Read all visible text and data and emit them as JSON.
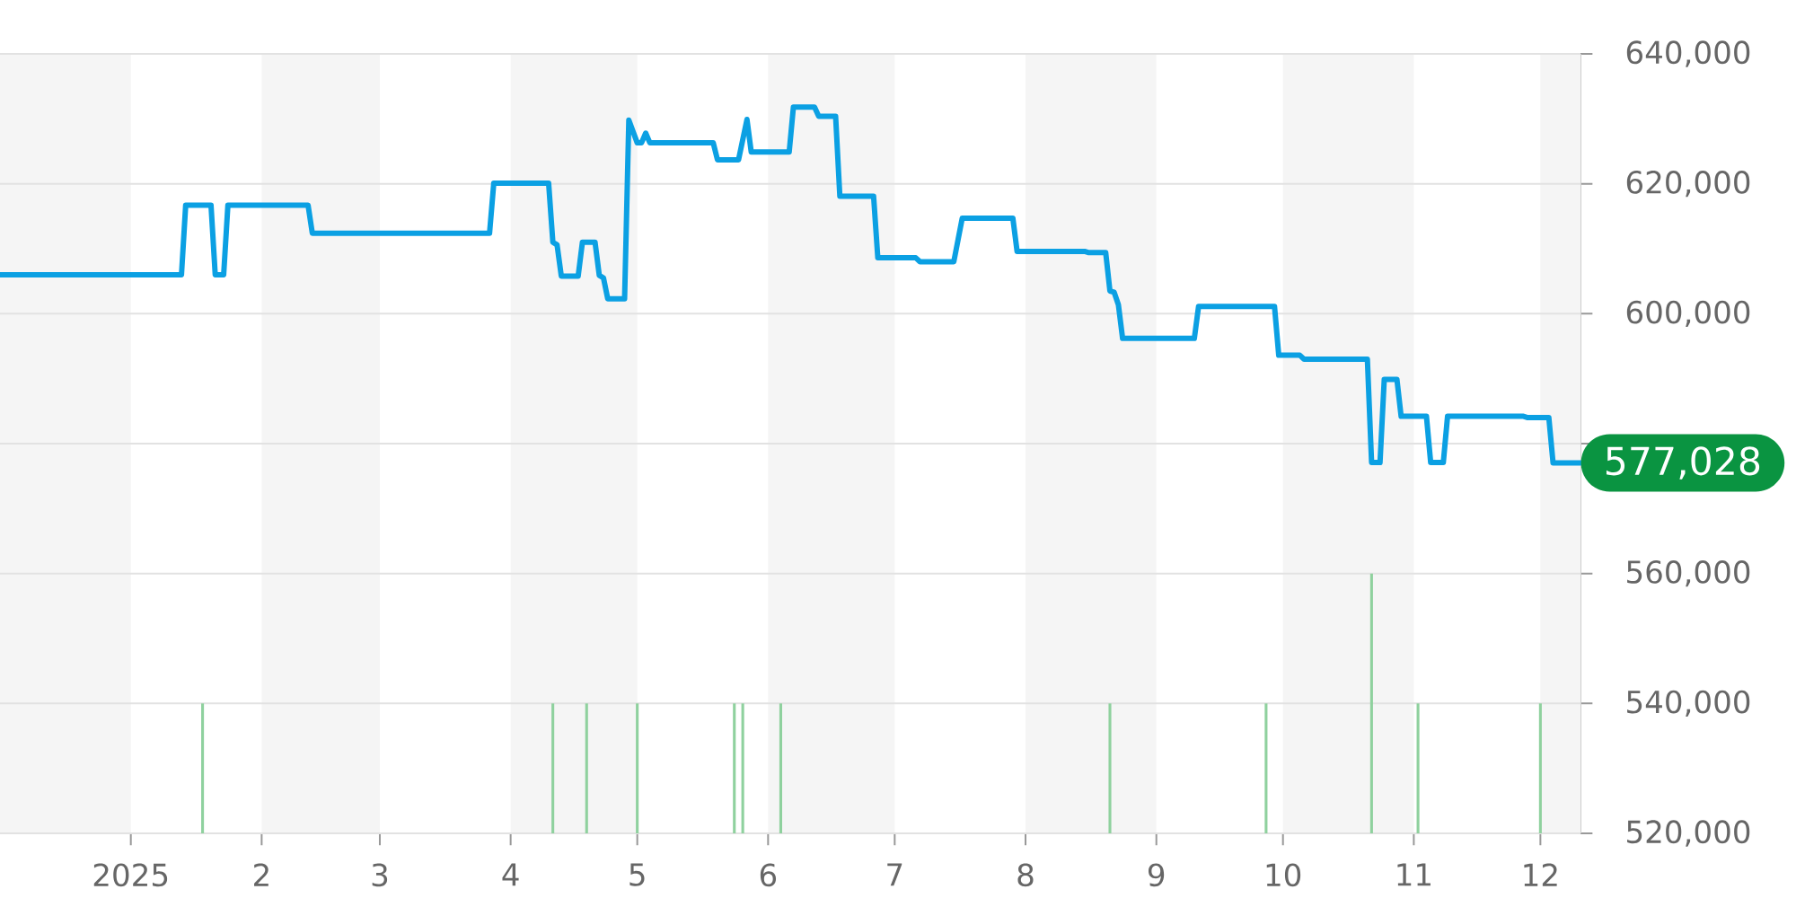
{
  "chart_data": {
    "type": "line",
    "xlim": [
      "2024-12-01",
      "2025-12-10T12:00"
    ],
    "ylim": [
      520000,
      640000
    ],
    "xticks": [
      {
        "value": "2025-01-01",
        "label": "2025"
      },
      {
        "value": "2025-02-01",
        "label": "2"
      },
      {
        "value": "2025-03-01",
        "label": "3"
      },
      {
        "value": "2025-04-01",
        "label": "4"
      },
      {
        "value": "2025-05-01",
        "label": "5"
      },
      {
        "value": "2025-06-01",
        "label": "6"
      },
      {
        "value": "2025-07-01",
        "label": "7"
      },
      {
        "value": "2025-08-01",
        "label": "8"
      },
      {
        "value": "2025-09-01",
        "label": "9"
      },
      {
        "value": "2025-10-01",
        "label": "10"
      },
      {
        "value": "2025-11-01",
        "label": "11"
      },
      {
        "value": "2025-12-01",
        "label": "12"
      }
    ],
    "yticks": [
      {
        "value": 520000,
        "label": "520,000"
      },
      {
        "value": 540000,
        "label": "540,000"
      },
      {
        "value": 560000,
        "label": "560,000"
      },
      {
        "value": 580000,
        "label": null
      },
      {
        "value": 600000,
        "label": "600,000"
      },
      {
        "value": 620000,
        "label": "620,000"
      },
      {
        "value": 640000,
        "label": "640,000"
      }
    ],
    "grid": "y",
    "bands": [
      {
        "axis": "x",
        "from": "2024-12-01",
        "to": "2025-01-01",
        "color": "#f5f5f5"
      },
      {
        "axis": "x",
        "from": "2025-02-01",
        "to": "2025-03-01",
        "color": "#f5f5f5"
      },
      {
        "axis": "x",
        "from": "2025-04-01",
        "to": "2025-05-01",
        "color": "#f5f5f5"
      },
      {
        "axis": "x",
        "from": "2025-06-01",
        "to": "2025-07-01",
        "color": "#f5f5f5"
      },
      {
        "axis": "x",
        "from": "2025-08-01",
        "to": "2025-09-01",
        "color": "#f5f5f5"
      },
      {
        "axis": "x",
        "from": "2025-10-01",
        "to": "2025-11-01",
        "color": "#f5f5f5"
      },
      {
        "axis": "x",
        "from": "2025-12-01",
        "to": "2025-12-10T12:00",
        "color": "#f5f5f5"
      }
    ],
    "series": [
      {
        "color": "#0ba0e3",
        "x": [
          "2024-12-01",
          "2025-01-13",
          "2025-01-14",
          "2025-01-20",
          "2025-01-21",
          "2025-01-23",
          "2025-01-24",
          "2025-02-12",
          "2025-02-13",
          "2025-03-27",
          "2025-03-28",
          "2025-04-10",
          "2025-04-11",
          "2025-04-12",
          "2025-04-13",
          "2025-04-17",
          "2025-04-18",
          "2025-04-21",
          "2025-04-22",
          "2025-04-23",
          "2025-04-24",
          "2025-04-28",
          "2025-04-29",
          "2025-05-01",
          "2025-05-02",
          "2025-05-03",
          "2025-05-04",
          "2025-05-19",
          "2025-05-20",
          "2025-05-25",
          "2025-05-27",
          "2025-05-28",
          "2025-06-06",
          "2025-06-07",
          "2025-06-12",
          "2025-06-13",
          "2025-06-17",
          "2025-06-18",
          "2025-06-26",
          "2025-06-27",
          "2025-07-06",
          "2025-07-07",
          "2025-07-15",
          "2025-07-17",
          "2025-07-29",
          "2025-07-30",
          "2025-08-15",
          "2025-08-16",
          "2025-08-20",
          "2025-08-21",
          "2025-08-22",
          "2025-08-23",
          "2025-08-24",
          "2025-09-10",
          "2025-09-11",
          "2025-09-29",
          "2025-09-30",
          "2025-10-05",
          "2025-10-06",
          "2025-10-21",
          "2025-10-22",
          "2025-10-24",
          "2025-10-25",
          "2025-10-28",
          "2025-10-29",
          "2025-11-04",
          "2025-11-05",
          "2025-11-08",
          "2025-11-09",
          "2025-11-27",
          "2025-11-28",
          "2025-12-03",
          "2025-12-04",
          "2025-12-10T12:00"
        ],
        "values": [
          606000,
          606000,
          616700,
          616700,
          606000,
          606000,
          616700,
          616700,
          612400,
          612400,
          620100,
          620100,
          611000,
          610600,
          605800,
          605800,
          611000,
          611000,
          605900,
          605500,
          602300,
          602300,
          629800,
          626300,
          626300,
          627800,
          626300,
          626300,
          623700,
          623700,
          629900,
          624900,
          624900,
          631800,
          631800,
          630400,
          630400,
          618100,
          618100,
          608600,
          608600,
          608000,
          608000,
          614700,
          614700,
          609600,
          609600,
          609400,
          609400,
          603500,
          603300,
          601400,
          596200,
          596200,
          601100,
          601100,
          593600,
          593600,
          593000,
          593000,
          577100,
          577100,
          589900,
          589900,
          584200,
          584200,
          577100,
          577100,
          584200,
          584200,
          584000,
          584000,
          577028,
          577028
        ]
      },
      {
        "type": "bar",
        "color": "#8fd19e",
        "x": [
          "2025-01-18",
          "2025-04-11",
          "2025-04-19",
          "2025-05-01",
          "2025-05-24",
          "2025-05-26",
          "2025-06-04",
          "2025-08-21",
          "2025-09-27",
          "2025-10-22",
          "2025-11-02",
          "2025-12-01"
        ],
        "values": [
          540000,
          540000,
          540000,
          540000,
          540000,
          540000,
          540000,
          540000,
          540000,
          560000,
          540000,
          540000
        ]
      }
    ],
    "annotations": [
      {
        "text": "577,028",
        "x": "2025-12-10T12:00",
        "y": 577028
      }
    ]
  }
}
